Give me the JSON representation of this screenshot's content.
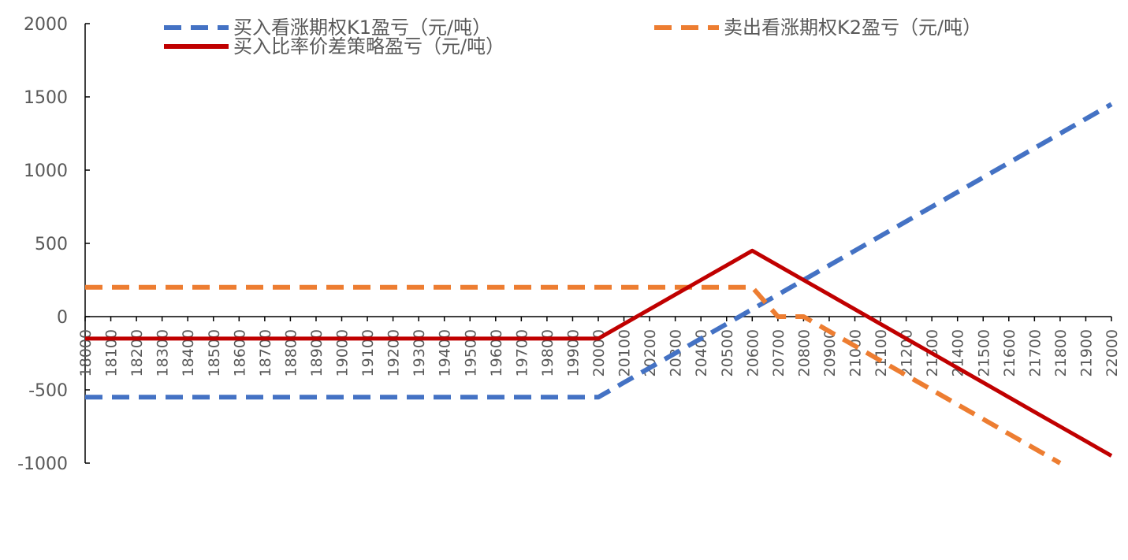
{
  "chart_data": {
    "type": "line",
    "title": "",
    "xlabel": "",
    "ylabel": "",
    "ylim": [
      -1000,
      2000
    ],
    "yticks": [
      -1000,
      -500,
      0,
      500,
      1000,
      1500,
      2000
    ],
    "categories": [
      "18000",
      "18100",
      "18200",
      "18300",
      "18400",
      "18500",
      "18600",
      "18700",
      "18800",
      "18900",
      "19000",
      "19100",
      "19200",
      "19300",
      "19400",
      "19500",
      "19600",
      "19700",
      "19800",
      "19900",
      "20000",
      "20100",
      "20200",
      "20300",
      "20400",
      "20500",
      "20600",
      "20700",
      "20800",
      "20900",
      "21000",
      "21100",
      "21200",
      "21300",
      "21400",
      "21500",
      "21600",
      "21700",
      "21800",
      "21900",
      "22000"
    ],
    "legend_position": "top",
    "series": [
      {
        "name": "买入看涨期权K1盈亏（元/吨）",
        "color": "#4472C4",
        "dash": true,
        "values": [
          -550,
          -550,
          -550,
          -550,
          -550,
          -550,
          -550,
          -550,
          -550,
          -550,
          -550,
          -550,
          -550,
          -550,
          -550,
          -550,
          -550,
          -550,
          -550,
          -550,
          -550,
          -450,
          -350,
          -250,
          -150,
          -50,
          50,
          150,
          250,
          350,
          450,
          550,
          650,
          750,
          850,
          950,
          1050,
          1150,
          1250,
          1350,
          1450
        ]
      },
      {
        "name": "卖出看涨期权K2盈亏（元/吨）",
        "color": "#ED7D31",
        "dash": true,
        "values": [
          200,
          200,
          200,
          200,
          200,
          200,
          200,
          200,
          200,
          200,
          200,
          200,
          200,
          200,
          200,
          200,
          200,
          200,
          200,
          200,
          200,
          200,
          200,
          200,
          200,
          200,
          200,
          0,
          0,
          -100,
          -200,
          -300,
          -400,
          -500,
          -600,
          -700,
          -800,
          -900,
          -1000,
          null,
          null
        ]
      },
      {
        "name": "买入比率价差策略盈亏（元/吨）",
        "color": "#C00000",
        "dash": false,
        "values": [
          -150,
          -150,
          -150,
          -150,
          -150,
          -150,
          -150,
          -150,
          -150,
          -150,
          -150,
          -150,
          -150,
          -150,
          -150,
          -150,
          -150,
          -150,
          -150,
          -150,
          -150,
          -50,
          50,
          150,
          250,
          350,
          450,
          350,
          250,
          150,
          50,
          -50,
          -150,
          -250,
          -350,
          -450,
          -550,
          -650,
          -750,
          -850,
          -950
        ]
      }
    ]
  }
}
